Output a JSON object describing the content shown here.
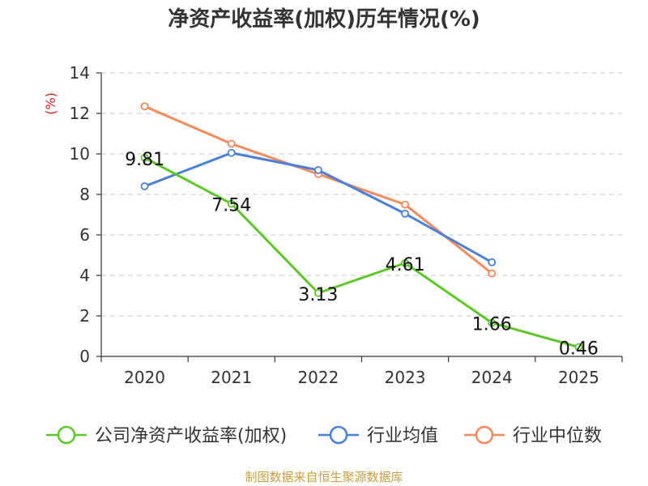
{
  "chart_data": {
    "type": "line",
    "title": "净资产收益率(加权)历年情况(%)",
    "ylabel": "(%)",
    "xlabel": "",
    "categories": [
      "2020",
      "2021",
      "2022",
      "2023",
      "2024",
      "2025"
    ],
    "ylim": [
      0,
      14
    ],
    "yticks": [
      0,
      2,
      4,
      6,
      8,
      10,
      12,
      14
    ],
    "grid": true,
    "legend_position": "bottom",
    "series": [
      {
        "name": "公司净资产收益率(加权)",
        "color": "#5cc826",
        "values": [
          9.81,
          7.54,
          3.13,
          4.61,
          1.66,
          0.46
        ],
        "labels": [
          "9.81",
          "7.54",
          "3.13",
          "4.61",
          "1.66",
          "0.46"
        ],
        "show_labels": true
      },
      {
        "name": "行业均值",
        "color": "#4a7fdc",
        "values": [
          8.4,
          10.05,
          9.2,
          7.05,
          4.65,
          null
        ],
        "show_labels": false
      },
      {
        "name": "行业中位数",
        "color": "#f5895a",
        "values": [
          12.35,
          10.5,
          9.0,
          7.5,
          4.1,
          null
        ],
        "show_labels": false
      }
    ]
  },
  "footer": {
    "source": "制图数据来自恒生聚源数据库"
  }
}
